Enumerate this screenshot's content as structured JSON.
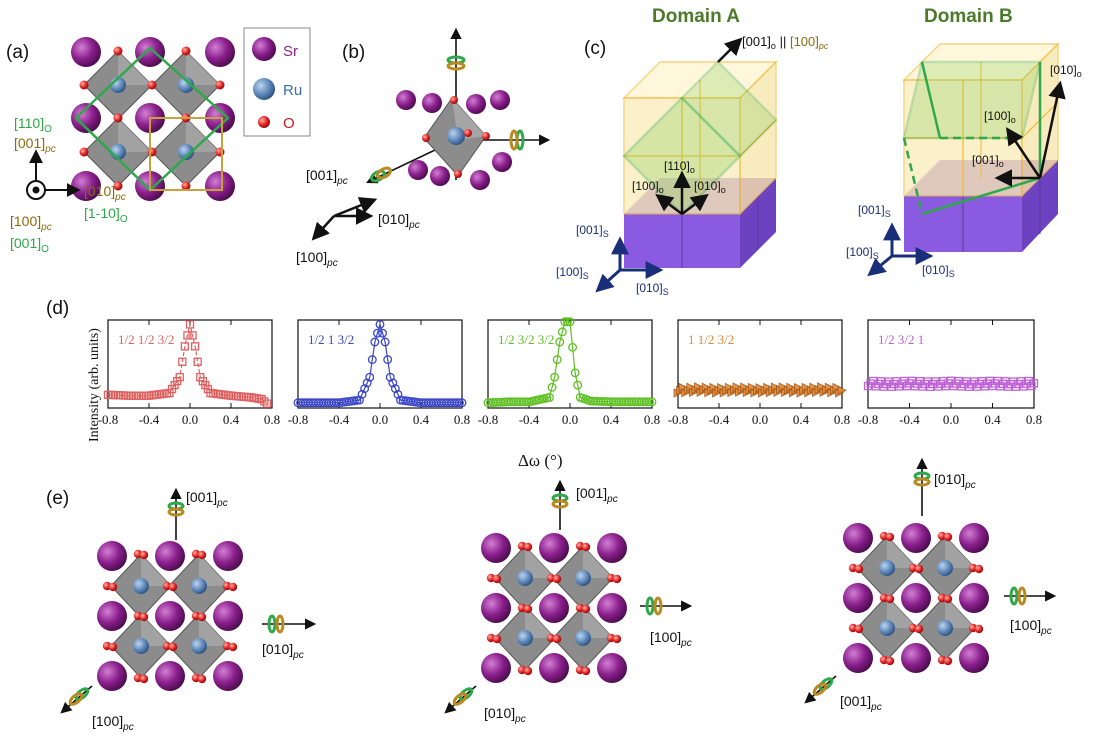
{
  "panel_labels": [
    "(a)",
    "(b)",
    "(c)",
    "(d)",
    "(e)"
  ],
  "legend": [
    {
      "label": "Sr",
      "color": "#8a1f8c"
    },
    {
      "label": "Ru",
      "color": "#5b86b8"
    },
    {
      "label": "O",
      "color": "#e02020"
    }
  ],
  "panel_a": {
    "axis_up": "[110]",
    "axis_up_sub": "O",
    "axis_up2": "[001]",
    "axis_up2_sub": "pc",
    "axis_right": "[010]",
    "axis_right_sub": "pc",
    "axis_right2": "[1-10]",
    "axis_right2_sub": "O",
    "axis_out": "[100]",
    "axis_out_sub": "pc",
    "axis_out2": "[001]",
    "axis_out2_sub": "O"
  },
  "panel_b": {
    "axis_a": "[001]",
    "axis_a_sub": "pc",
    "axis_b": "[010]",
    "axis_b_sub": "pc",
    "axis_c": "[100]",
    "axis_c_sub": "pc"
  },
  "panel_c": {
    "domain_a": "Domain A",
    "domain_b": "Domain B",
    "top_label": "[001]",
    "top_label_sub": "o",
    "top_parallel": "||",
    "top_label2": "[100]",
    "top_label2_sub": "pc",
    "a_110": "[110]",
    "a_110_sub": "o",
    "a_100": "[100]",
    "a_100_sub": "o",
    "a_010": "[010]",
    "a_010_sub": "o",
    "b_010": "[010]",
    "b_010_sub": "o",
    "b_100": "[100]",
    "b_100_sub": "o",
    "b_001": "[001]",
    "b_001_sub": "o",
    "s_001": "[001]",
    "s_001_sub": "S",
    "s_100": "[100]",
    "s_100_sub": "S",
    "s_010": "[010]",
    "s_010_sub": "S",
    "colors": {
      "film": "#f5c842",
      "substrate": "#8a5ae0",
      "domain_box": "#2ea84a"
    }
  },
  "panel_d": {
    "ylabel": "Intensity (arb. units)",
    "xlabel": "Δω (°)",
    "chart_data": [
      {
        "type": "scatter",
        "reflection": "1/2 1/2 3/2",
        "color": "#e06060",
        "marker": "square",
        "x": [
          -0.8,
          -0.6,
          -0.4,
          -0.2,
          -0.1,
          -0.05,
          0.0,
          0.05,
          0.1,
          0.2,
          0.4,
          0.6,
          0.7,
          0.75
        ],
        "y": [
          0.15,
          0.14,
          0.14,
          0.17,
          0.35,
          0.7,
          0.95,
          0.7,
          0.35,
          0.17,
          0.14,
          0.12,
          0.1,
          0.05
        ],
        "xlim": [
          -0.8,
          0.8
        ],
        "ylim": [
          0,
          1
        ]
      },
      {
        "type": "scatter",
        "reflection": "1/2 1 3/2",
        "color": "#3a46c8",
        "marker": "circle",
        "x": [
          -0.8,
          -0.6,
          -0.4,
          -0.2,
          -0.1,
          -0.05,
          0.0,
          0.05,
          0.1,
          0.2,
          0.4,
          0.6,
          0.8
        ],
        "y": [
          0.06,
          0.06,
          0.06,
          0.09,
          0.35,
          0.75,
          0.95,
          0.75,
          0.35,
          0.09,
          0.06,
          0.06,
          0.06
        ],
        "xlim": [
          -0.8,
          0.8
        ],
        "ylim": [
          0,
          1
        ]
      },
      {
        "type": "scatter",
        "reflection": "1/2 3/2 3/2",
        "color": "#5ec022",
        "marker": "circle",
        "x": [
          -0.8,
          -0.6,
          -0.4,
          -0.2,
          -0.15,
          -0.1,
          -0.05,
          0.0,
          0.05,
          0.1,
          0.2,
          0.4,
          0.6,
          0.8
        ],
        "y": [
          0.06,
          0.07,
          0.07,
          0.12,
          0.35,
          0.75,
          0.98,
          0.98,
          0.4,
          0.12,
          0.08,
          0.07,
          0.07,
          0.07
        ],
        "xlim": [
          -0.8,
          0.8
        ],
        "ylim": [
          0,
          1
        ]
      },
      {
        "type": "scatter",
        "reflection": "1 1/2 3/2",
        "color": "#e08a3a",
        "marker": "triangle",
        "x": [
          -0.8,
          -0.6,
          -0.4,
          -0.2,
          0.0,
          0.2,
          0.4,
          0.6,
          0.8
        ],
        "y": [
          0.2,
          0.21,
          0.2,
          0.21,
          0.2,
          0.21,
          0.2,
          0.21,
          0.2
        ],
        "xlim": [
          -0.8,
          0.8
        ],
        "ylim": [
          0,
          1
        ]
      },
      {
        "type": "scatter",
        "reflection": "1/2 3/2 1",
        "color": "#c060d8",
        "marker": "square",
        "x": [
          -0.8,
          -0.6,
          -0.4,
          -0.2,
          0.0,
          0.2,
          0.4,
          0.6,
          0.8
        ],
        "y": [
          0.28,
          0.27,
          0.28,
          0.27,
          0.28,
          0.27,
          0.28,
          0.27,
          0.28
        ],
        "xlim": [
          -0.8,
          0.8
        ],
        "ylim": [
          0,
          1
        ]
      }
    ],
    "ticks": [
      "-0.8",
      "-0.4",
      "0.0",
      "0.4",
      "0.8"
    ]
  },
  "panel_e": [
    {
      "axis_up": "[001]",
      "axis_up_sub": "pc",
      "axis_right": "[010]",
      "axis_right_sub": "pc",
      "axis_diag": "[100]",
      "axis_diag_sub": "pc"
    },
    {
      "axis_up": "[001]",
      "axis_up_sub": "pc",
      "axis_right": "[100]",
      "axis_right_sub": "pc",
      "axis_diag": "[010]",
      "axis_diag_sub": "pc"
    },
    {
      "axis_up": "[010]",
      "axis_up_sub": "pc",
      "axis_right": "[100]",
      "axis_right_sub": "pc",
      "axis_diag": "[001]",
      "axis_diag_sub": "pc"
    }
  ]
}
